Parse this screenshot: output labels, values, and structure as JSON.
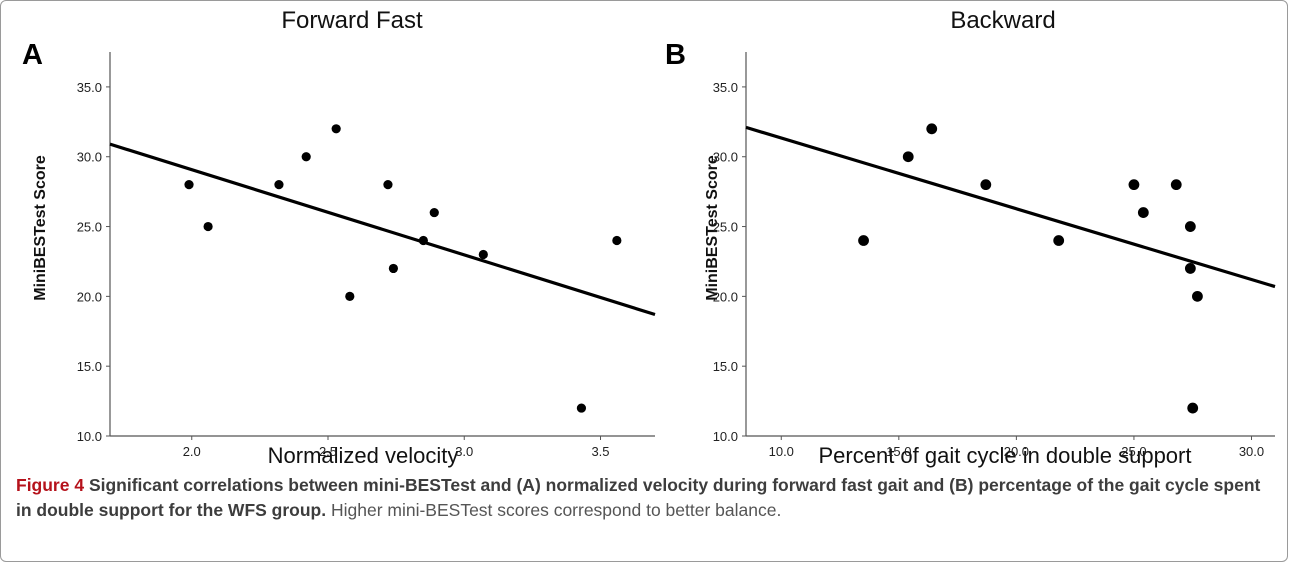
{
  "chart_data": [
    {
      "type": "scatter",
      "panel_label": "A",
      "title": "Forward Fast",
      "xlabel": "Normalized velocity",
      "ylabel": "MiniBESTest Score",
      "xlim": [
        1.7,
        3.7
      ],
      "ylim": [
        10.0,
        37.5
      ],
      "xticks": [
        "2.0",
        "2.5",
        "3.0",
        "3.5"
      ],
      "yticks": [
        "10.0",
        "15.0",
        "20.0",
        "25.0",
        "30.0",
        "35.0"
      ],
      "points": [
        {
          "x": 1.99,
          "y": 28
        },
        {
          "x": 2.06,
          "y": 25
        },
        {
          "x": 2.32,
          "y": 28
        },
        {
          "x": 2.42,
          "y": 30
        },
        {
          "x": 2.53,
          "y": 32
        },
        {
          "x": 2.58,
          "y": 20
        },
        {
          "x": 2.72,
          "y": 28
        },
        {
          "x": 2.74,
          "y": 22
        },
        {
          "x": 2.85,
          "y": 24
        },
        {
          "x": 2.89,
          "y": 26
        },
        {
          "x": 3.07,
          "y": 23
        },
        {
          "x": 3.43,
          "y": 12
        },
        {
          "x": 3.56,
          "y": 24
        }
      ],
      "fit_line": {
        "x": [
          1.7,
          3.7
        ],
        "y": [
          30.9,
          18.7
        ]
      }
    },
    {
      "type": "scatter",
      "panel_label": "B",
      "title": "Backward",
      "xlabel": "Percent of gait cycle in double support",
      "ylabel": "MiniBESTest Score",
      "xlim": [
        8.5,
        31.0
      ],
      "ylim": [
        10.0,
        37.5
      ],
      "xticks": [
        "10.0",
        "15.0",
        "20.0",
        "25.0",
        "30.0"
      ],
      "yticks": [
        "10.0",
        "15.0",
        "20.0",
        "25.0",
        "30.0",
        "35.0"
      ],
      "points": [
        {
          "x": 13.5,
          "y": 24
        },
        {
          "x": 15.4,
          "y": 30
        },
        {
          "x": 16.4,
          "y": 32
        },
        {
          "x": 18.7,
          "y": 28
        },
        {
          "x": 21.8,
          "y": 24
        },
        {
          "x": 25.0,
          "y": 28
        },
        {
          "x": 25.4,
          "y": 26
        },
        {
          "x": 26.8,
          "y": 28
        },
        {
          "x": 27.4,
          "y": 25
        },
        {
          "x": 27.4,
          "y": 22
        },
        {
          "x": 27.7,
          "y": 20
        },
        {
          "x": 27.5,
          "y": 12
        }
      ],
      "fit_line": {
        "x": [
          8.5,
          31.0
        ],
        "y": [
          32.1,
          20.7
        ]
      }
    }
  ],
  "caption": {
    "label": "Figure 4",
    "bold_text": "Significant correlations between mini-BESTest and (A) normalized velocity during forward fast gait and (B) percentage of the gait cycle spent in double support for the WFS group.",
    "text": "Higher mini-BESTest scores correspond to better balance."
  }
}
